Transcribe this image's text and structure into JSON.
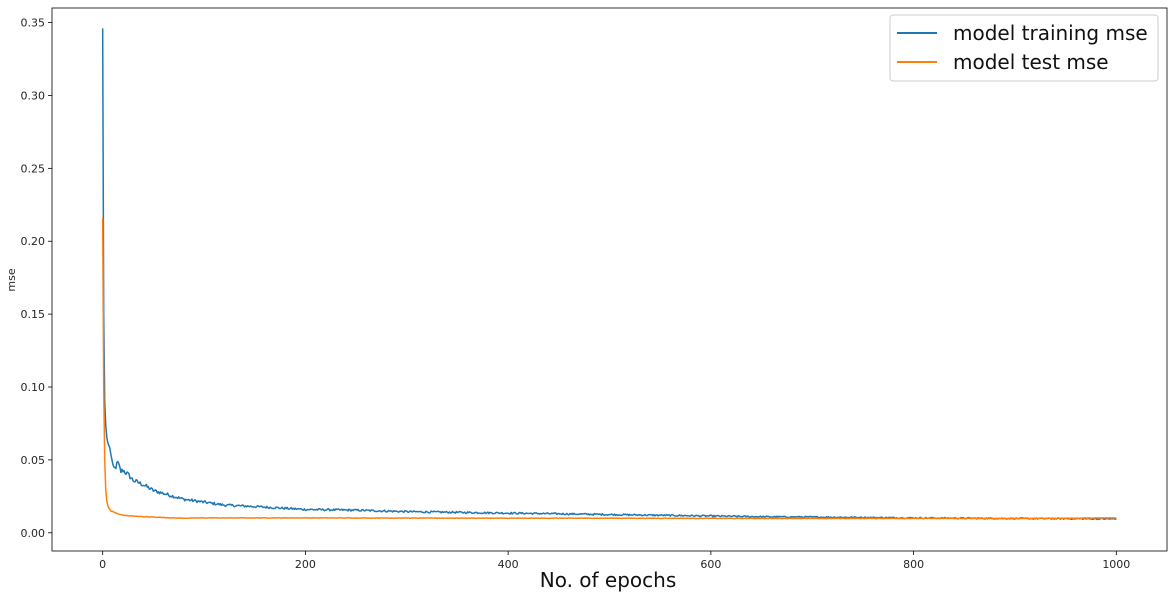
{
  "chart_data": {
    "type": "line",
    "title": "",
    "xlabel": "No. of epochs",
    "ylabel": "mse",
    "xlim": [
      -50,
      1050
    ],
    "ylim": [
      -0.0125,
      0.36
    ],
    "x_ticks": [
      0,
      200,
      400,
      600,
      800,
      1000
    ],
    "x_tick_labels": [
      "0",
      "200",
      "400",
      "600",
      "800",
      "1000"
    ],
    "y_ticks": [
      0.0,
      0.05,
      0.1,
      0.15,
      0.2,
      0.25,
      0.3,
      0.35
    ],
    "y_tick_labels": [
      "0.00",
      "0.05",
      "0.10",
      "0.15",
      "0.20",
      "0.25",
      "0.30",
      "0.35"
    ],
    "grid": false,
    "legend_position": "top-right",
    "series": [
      {
        "name": "model training mse",
        "color": "#1f77b4",
        "points": [
          [
            0,
            0.346
          ],
          [
            1,
            0.15
          ],
          [
            2,
            0.09
          ],
          [
            3,
            0.074
          ],
          [
            4,
            0.066
          ],
          [
            5,
            0.062
          ],
          [
            6,
            0.06
          ],
          [
            8,
            0.055
          ],
          [
            10,
            0.045
          ],
          [
            12,
            0.044
          ],
          [
            15,
            0.048
          ],
          [
            18,
            0.042
          ],
          [
            20,
            0.043
          ],
          [
            25,
            0.04
          ],
          [
            30,
            0.036
          ],
          [
            40,
            0.033
          ],
          [
            50,
            0.029
          ],
          [
            60,
            0.027
          ],
          [
            70,
            0.025
          ],
          [
            80,
            0.023
          ],
          [
            90,
            0.022
          ],
          [
            100,
            0.021
          ],
          [
            120,
            0.019
          ],
          [
            150,
            0.018
          ],
          [
            200,
            0.016
          ],
          [
            250,
            0.0155
          ],
          [
            300,
            0.0145
          ],
          [
            350,
            0.014
          ],
          [
            400,
            0.0135
          ],
          [
            450,
            0.013
          ],
          [
            500,
            0.0125
          ],
          [
            550,
            0.012
          ],
          [
            600,
            0.0115
          ],
          [
            650,
            0.011
          ],
          [
            700,
            0.0108
          ],
          [
            750,
            0.0105
          ],
          [
            800,
            0.0102
          ],
          [
            850,
            0.01
          ],
          [
            900,
            0.0098
          ],
          [
            950,
            0.0097
          ],
          [
            1000,
            0.0095
          ]
        ]
      },
      {
        "name": "model test mse",
        "color": "#ff7f0e",
        "points": [
          [
            0,
            0.216
          ],
          [
            1,
            0.1
          ],
          [
            2,
            0.05
          ],
          [
            3,
            0.03
          ],
          [
            4,
            0.022
          ],
          [
            5,
            0.019
          ],
          [
            6,
            0.017
          ],
          [
            8,
            0.015
          ],
          [
            10,
            0.0145
          ],
          [
            15,
            0.013
          ],
          [
            20,
            0.012
          ],
          [
            30,
            0.0115
          ],
          [
            40,
            0.011
          ],
          [
            50,
            0.0108
          ],
          [
            60,
            0.0105
          ],
          [
            70,
            0.0102
          ],
          [
            80,
            0.01
          ],
          [
            100,
            0.0102
          ],
          [
            150,
            0.0102
          ],
          [
            200,
            0.0102
          ],
          [
            300,
            0.0101
          ],
          [
            400,
            0.01
          ],
          [
            500,
            0.01
          ],
          [
            600,
            0.0099
          ],
          [
            700,
            0.0098
          ],
          [
            800,
            0.0099
          ],
          [
            900,
            0.0098
          ],
          [
            1000,
            0.0102
          ]
        ]
      }
    ]
  }
}
